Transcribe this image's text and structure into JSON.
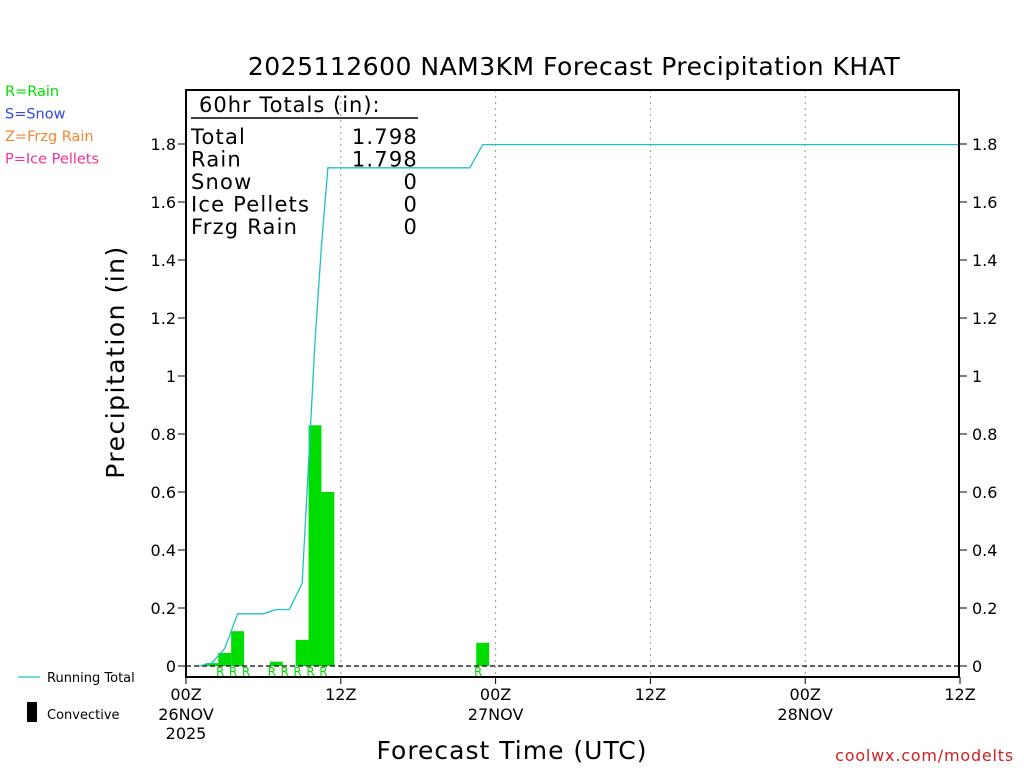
{
  "chart_data": {
    "type": "bar",
    "title": "2025112600 NAM3KM Forecast Precipitation KHAT",
    "xlabel": "Forecast Time (UTC)",
    "ylabel": "Precipitation (in)",
    "ylim": [
      0,
      2.0
    ],
    "xlim_hours": [
      0,
      60
    ],
    "y_ticks": [
      "0",
      "0.2",
      "0.4",
      "0.6",
      "0.8",
      "1",
      "1.2",
      "1.4",
      "1.6",
      "1.8"
    ],
    "y_tick_values": [
      0,
      0.2,
      0.4,
      0.6,
      0.8,
      1.0,
      1.2,
      1.4,
      1.6,
      1.8
    ],
    "x_ticks": [
      {
        "hour": 0,
        "label": "00Z",
        "sub1": "26NOV",
        "sub2": "2025"
      },
      {
        "hour": 12,
        "label": "12Z",
        "sub1": "",
        "sub2": ""
      },
      {
        "hour": 24,
        "label": "00Z",
        "sub1": "27NOV",
        "sub2": ""
      },
      {
        "hour": 36,
        "label": "12Z",
        "sub1": "",
        "sub2": ""
      },
      {
        "hour": 48,
        "label": "00Z",
        "sub1": "28NOV",
        "sub2": ""
      },
      {
        "hour": 60,
        "label": "12Z",
        "sub1": "",
        "sub2": ""
      }
    ],
    "grid_hours": [
      12,
      24,
      36,
      48
    ],
    "series": [
      {
        "name": "Rain",
        "type": "bar",
        "color": "#00dd00",
        "bars": [
          {
            "start": 1.5,
            "end": 2.5,
            "value": 0.01
          },
          {
            "start": 2.5,
            "end": 3.5,
            "value": 0.045
          },
          {
            "start": 3.5,
            "end": 4.5,
            "value": 0.12
          },
          {
            "start": 6.5,
            "end": 7.5,
            "value": 0.015
          },
          {
            "start": 8.5,
            "end": 9.5,
            "value": 0.09
          },
          {
            "start": 9.5,
            "end": 10.5,
            "value": 0.83
          },
          {
            "start": 10.5,
            "end": 11.5,
            "value": 0.6
          },
          {
            "start": 22.5,
            "end": 23.5,
            "value": 0.08
          }
        ]
      },
      {
        "name": "Running Total",
        "type": "line",
        "color": "#20c0c0",
        "x": [
          1,
          2,
          3,
          4,
          5,
          6,
          7,
          8,
          9,
          9.5,
          10,
          10.5,
          11,
          12,
          15,
          20,
          22,
          23,
          30,
          40,
          50,
          60
        ],
        "values": [
          0,
          0.01,
          0.06,
          0.18,
          0.18,
          0.18,
          0.195,
          0.195,
          0.285,
          0.7,
          1.12,
          1.45,
          1.718,
          1.718,
          1.718,
          1.718,
          1.718,
          1.798,
          1.798,
          1.798,
          1.798,
          1.798
        ]
      }
    ],
    "type_markers": {
      "letter": "R",
      "color": "#00dd00",
      "hours": [
        3,
        4,
        5,
        7,
        8,
        9,
        10,
        11,
        23
      ]
    },
    "legend_types": [
      {
        "label": "R=Rain",
        "color": "#00dd00"
      },
      {
        "label": "S=Snow",
        "color": "#3344ee"
      },
      {
        "label": "Z=Frzg Rain",
        "color": "#ee8833"
      },
      {
        "label": "P=Ice Pellets",
        "color": "#ee3399"
      }
    ],
    "legend_bottom": [
      {
        "label": "Running Total",
        "color": "#20c0c0"
      },
      {
        "label": "Convective",
        "color": "#000000"
      }
    ],
    "totals": {
      "header": "60hr Totals (in):",
      "rows": [
        {
          "label": "Total",
          "value": "1.798"
        },
        {
          "label": "Rain",
          "value": "1.798"
        },
        {
          "label": "Snow",
          "value": "0"
        },
        {
          "label": "Ice Pellets",
          "value": "0"
        },
        {
          "label": "Frzg Rain",
          "value": "0"
        }
      ]
    },
    "footer": "coolwx.com/modelts"
  }
}
